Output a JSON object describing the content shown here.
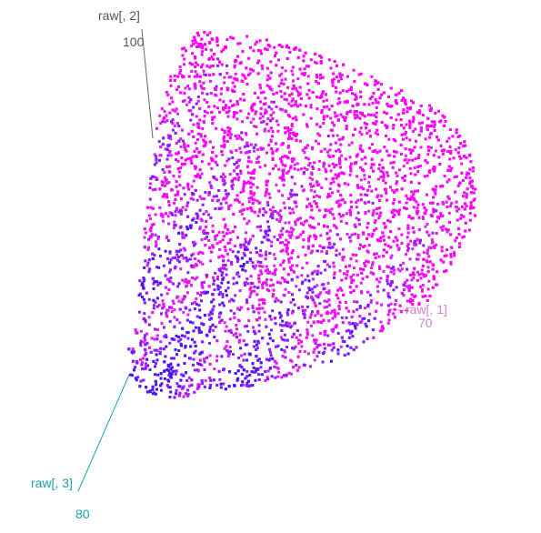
{
  "chart_data": {
    "type": "scatter",
    "projection": "3d",
    "axes": {
      "x": {
        "label": "raw[, 1]",
        "tick_shown": "70",
        "color": "#d77fcf"
      },
      "y": {
        "label": "raw[, 2]",
        "tick_shown": "100",
        "color": "#555555"
      },
      "z": {
        "label": "raw[, 3]",
        "tick_shown": "80",
        "color": "#1aa0a8"
      }
    },
    "grid": false,
    "legend": "none",
    "point_colors": [
      "#ff00ff",
      "#e01cf0",
      "#8a1cff",
      "#4a14f5"
    ],
    "description_of_cloud": "dense 3D point cloud, color gradient magenta to blue"
  }
}
